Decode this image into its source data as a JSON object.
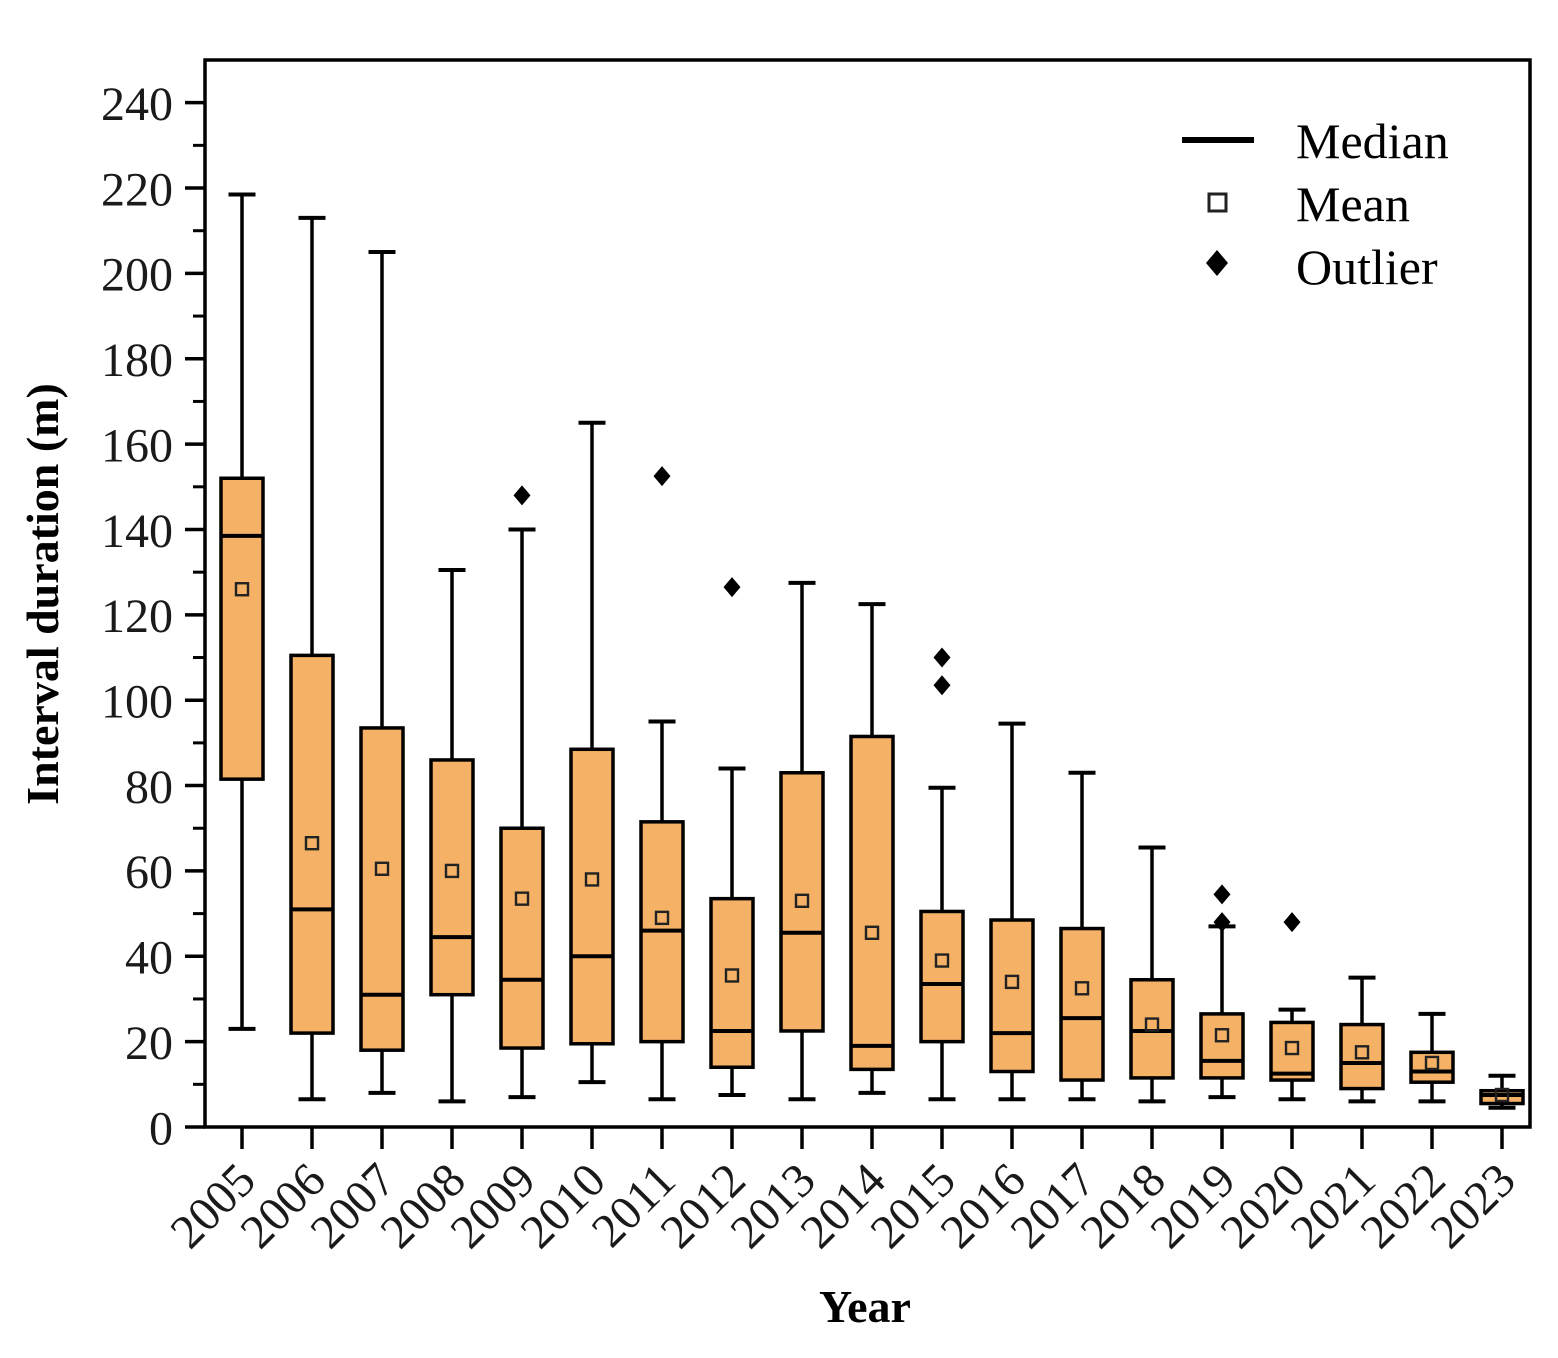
{
  "chart_data": {
    "type": "boxplot",
    "title": "",
    "xlabel": "Year",
    "ylabel": "Interval duration (m)",
    "ylim": [
      0,
      250
    ],
    "y_major_ticks": [
      0,
      20,
      40,
      60,
      80,
      100,
      120,
      140,
      160,
      180,
      200,
      220,
      240
    ],
    "y_minor_step": 10,
    "grid": false,
    "legend_position": "upper-right",
    "legend": [
      {
        "label": "Median",
        "marker": "line"
      },
      {
        "label": "Mean",
        "marker": "open-square"
      },
      {
        "label": "Outlier",
        "marker": "filled-diamond"
      }
    ],
    "categories": [
      "2005",
      "2006",
      "2007",
      "2008",
      "2009",
      "2010",
      "2011",
      "2012",
      "2013",
      "2014",
      "2015",
      "2016",
      "2017",
      "2018",
      "2019",
      "2020",
      "2021",
      "2022",
      "2023"
    ],
    "series": [
      {
        "year": "2005",
        "whisker_low": 23,
        "q1": 81.5,
        "median": 138.5,
        "mean": 126,
        "q3": 152,
        "whisker_high": 218.5,
        "outliers": []
      },
      {
        "year": "2006",
        "whisker_low": 6.5,
        "q1": 22,
        "median": 51,
        "mean": 66.5,
        "q3": 110.5,
        "whisker_high": 213,
        "outliers": []
      },
      {
        "year": "2007",
        "whisker_low": 8,
        "q1": 18,
        "median": 31,
        "mean": 60.5,
        "q3": 93.5,
        "whisker_high": 205,
        "outliers": []
      },
      {
        "year": "2008",
        "whisker_low": 6,
        "q1": 31,
        "median": 44.5,
        "mean": 60,
        "q3": 86,
        "whisker_high": 130.5,
        "outliers": []
      },
      {
        "year": "2009",
        "whisker_low": 7,
        "q1": 18.5,
        "median": 34.5,
        "mean": 53.5,
        "q3": 70,
        "whisker_high": 140,
        "outliers": [
          148
        ]
      },
      {
        "year": "2010",
        "whisker_low": 10.5,
        "q1": 19.5,
        "median": 40,
        "mean": 58,
        "q3": 88.5,
        "whisker_high": 165,
        "outliers": []
      },
      {
        "year": "2011",
        "whisker_low": 6.5,
        "q1": 20,
        "median": 46,
        "mean": 49,
        "q3": 71.5,
        "whisker_high": 95,
        "outliers": [
          152.5
        ]
      },
      {
        "year": "2012",
        "whisker_low": 7.5,
        "q1": 14,
        "median": 22.5,
        "mean": 35.5,
        "q3": 53.5,
        "whisker_high": 84,
        "outliers": [
          126.5
        ]
      },
      {
        "year": "2013",
        "whisker_low": 6.5,
        "q1": 22.5,
        "median": 45.5,
        "mean": 53,
        "q3": 83,
        "whisker_high": 127.5,
        "outliers": []
      },
      {
        "year": "2014",
        "whisker_low": 8,
        "q1": 13.5,
        "median": 19,
        "mean": 45.5,
        "q3": 91.5,
        "whisker_high": 122.5,
        "outliers": []
      },
      {
        "year": "2015",
        "whisker_low": 6.5,
        "q1": 20,
        "median": 33.5,
        "mean": 39,
        "q3": 50.5,
        "whisker_high": 79.5,
        "outliers": [
          110,
          103.5
        ]
      },
      {
        "year": "2016",
        "whisker_low": 6.5,
        "q1": 13,
        "median": 22,
        "mean": 34,
        "q3": 48.5,
        "whisker_high": 94.5,
        "outliers": []
      },
      {
        "year": "2017",
        "whisker_low": 6.5,
        "q1": 11,
        "median": 25.5,
        "mean": 32.5,
        "q3": 46.5,
        "whisker_high": 83,
        "outliers": []
      },
      {
        "year": "2018",
        "whisker_low": 6,
        "q1": 11.5,
        "median": 22.5,
        "mean": 24,
        "q3": 34.5,
        "whisker_high": 65.5,
        "outliers": []
      },
      {
        "year": "2019",
        "whisker_low": 7,
        "q1": 11.5,
        "median": 15.5,
        "mean": 21.5,
        "q3": 26.5,
        "whisker_high": 47,
        "outliers": [
          54.5,
          48
        ]
      },
      {
        "year": "2020",
        "whisker_low": 6.5,
        "q1": 11,
        "median": 12.5,
        "mean": 18.5,
        "q3": 24.5,
        "whisker_high": 27.5,
        "outliers": [
          48
        ]
      },
      {
        "year": "2021",
        "whisker_low": 6,
        "q1": 9,
        "median": 15,
        "mean": 17.5,
        "q3": 24,
        "whisker_high": 35,
        "outliers": []
      },
      {
        "year": "2022",
        "whisker_low": 6,
        "q1": 10.5,
        "median": 13,
        "mean": 15,
        "q3": 17.5,
        "whisker_high": 26.5,
        "outliers": []
      },
      {
        "year": "2023",
        "whisker_low": 4.5,
        "q1": 5.5,
        "median": 7.5,
        "mean": 7.5,
        "q3": 8.5,
        "whisker_high": 12,
        "outliers": []
      }
    ]
  },
  "colors": {
    "box_fill": "#F5B266",
    "box_edge": "#000000",
    "median_line": "#000000",
    "mean_marker_edge": "#222222",
    "outlier_fill": "#000000",
    "frame": "#000000",
    "tick": "#000000",
    "background": "#ffffff"
  }
}
